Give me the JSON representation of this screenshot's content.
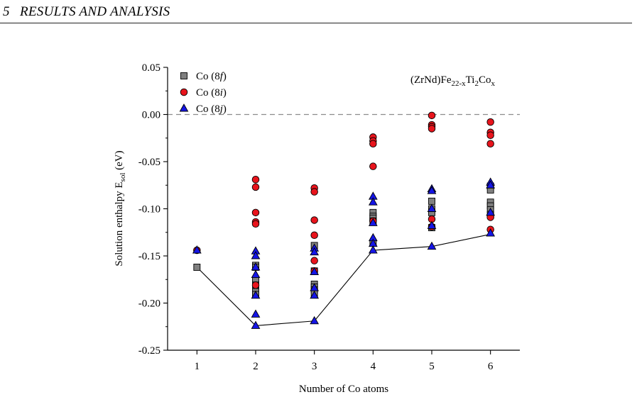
{
  "running_head": {
    "number": "5",
    "title": "RESULTS AND ANALYSIS"
  },
  "chart_data": {
    "type": "scatter",
    "formula": {
      "base": "(ZrNd)Fe",
      "sub1": "22-x",
      "mid": "Ti",
      "sub2": "2",
      "el": "Co",
      "sub3": "x"
    },
    "xlabel": "Number of Co atoms",
    "ylabel": {
      "main": "Solution enthalpy E",
      "sub": "sol",
      "unit": " (eV)"
    },
    "xlim": [
      0.5,
      6.5
    ],
    "ylim": [
      -0.25,
      0.05
    ],
    "x_ticks": [
      1,
      2,
      3,
      4,
      5,
      6
    ],
    "x_tick_labels": [
      "1",
      "2",
      "3",
      "4",
      "5",
      "6"
    ],
    "y_ticks": [
      0.05,
      0.0,
      -0.05,
      -0.1,
      -0.15,
      -0.2,
      -0.25
    ],
    "y_tick_labels": [
      "0.05",
      "0.00",
      "-0.05",
      "-0.10",
      "-0.15",
      "-0.20",
      "-0.25"
    ],
    "legend_position": "top-left",
    "reference_line": {
      "y": 0.0,
      "style": "dashed",
      "color": "#8c8c8c"
    },
    "series": [
      {
        "name": "Co (8f)",
        "label": {
          "pre": "Co (8",
          "it": "f",
          "post": ")"
        },
        "marker": "square",
        "color": "#808080",
        "points": [
          [
            1,
            -0.162
          ],
          [
            2,
            -0.16
          ],
          [
            2,
            -0.162
          ],
          [
            2,
            -0.175
          ],
          [
            2,
            -0.181
          ],
          [
            2,
            -0.188
          ],
          [
            2,
            -0.191
          ],
          [
            3,
            -0.139
          ],
          [
            3,
            -0.166
          ],
          [
            3,
            -0.18
          ],
          [
            3,
            -0.183
          ],
          [
            3,
            -0.186
          ],
          [
            3,
            -0.19
          ],
          [
            4,
            -0.104
          ],
          [
            4,
            -0.108
          ],
          [
            4,
            -0.11
          ],
          [
            4,
            -0.113
          ],
          [
            4,
            -0.136
          ],
          [
            5,
            -0.092
          ],
          [
            5,
            -0.1
          ],
          [
            5,
            -0.104
          ],
          [
            5,
            -0.12
          ],
          [
            6,
            -0.076
          ],
          [
            6,
            -0.08
          ],
          [
            6,
            -0.093
          ],
          [
            6,
            -0.097
          ],
          [
            6,
            -0.101
          ],
          [
            6,
            -0.106
          ]
        ]
      },
      {
        "name": "Co (8i)",
        "label": {
          "pre": "Co (8",
          "it": "i",
          "post": ")"
        },
        "marker": "circle",
        "color": "#e8141c",
        "points": [
          [
            1,
            -0.144
          ],
          [
            2,
            -0.069
          ],
          [
            2,
            -0.077
          ],
          [
            2,
            -0.104
          ],
          [
            2,
            -0.114
          ],
          [
            2,
            -0.116
          ],
          [
            2,
            -0.181
          ],
          [
            3,
            -0.078
          ],
          [
            3,
            -0.082
          ],
          [
            3,
            -0.112
          ],
          [
            3,
            -0.128
          ],
          [
            3,
            -0.155
          ],
          [
            3,
            -0.166
          ],
          [
            4,
            -0.024
          ],
          [
            4,
            -0.028
          ],
          [
            4,
            -0.031
          ],
          [
            4,
            -0.055
          ],
          [
            4,
            -0.113
          ],
          [
            5,
            -0.001
          ],
          [
            5,
            -0.011
          ],
          [
            5,
            -0.013
          ],
          [
            5,
            -0.015
          ],
          [
            5,
            -0.111
          ],
          [
            5,
            -0.119
          ],
          [
            6,
            -0.008
          ],
          [
            6,
            -0.019
          ],
          [
            6,
            -0.022
          ],
          [
            6,
            -0.031
          ],
          [
            6,
            -0.109
          ],
          [
            6,
            -0.122
          ]
        ]
      },
      {
        "name": "Co (8j)",
        "label": {
          "pre": "Co (8",
          "it": "j",
          "post": ")"
        },
        "marker": "triangle",
        "color": "#1515e6",
        "points": [
          [
            1,
            -0.144
          ],
          [
            2,
            -0.145
          ],
          [
            2,
            -0.15
          ],
          [
            2,
            -0.162
          ],
          [
            2,
            -0.17
          ],
          [
            2,
            -0.192
          ],
          [
            2,
            -0.212
          ],
          [
            2,
            -0.224
          ],
          [
            3,
            -0.142
          ],
          [
            3,
            -0.146
          ],
          [
            3,
            -0.167
          ],
          [
            3,
            -0.184
          ],
          [
            3,
            -0.192
          ],
          [
            3,
            -0.219
          ],
          [
            4,
            -0.087
          ],
          [
            4,
            -0.093
          ],
          [
            4,
            -0.115
          ],
          [
            4,
            -0.131
          ],
          [
            4,
            -0.137
          ],
          [
            4,
            -0.144
          ],
          [
            5,
            -0.079
          ],
          [
            5,
            -0.081
          ],
          [
            5,
            -0.1
          ],
          [
            5,
            -0.118
          ],
          [
            5,
            -0.14
          ],
          [
            6,
            -0.072
          ],
          [
            6,
            -0.075
          ],
          [
            6,
            -0.104
          ],
          [
            6,
            -0.126
          ]
        ]
      }
    ],
    "minimum_line": {
      "points": [
        [
          1,
          -0.162
        ],
        [
          2,
          -0.224
        ],
        [
          3,
          -0.219
        ],
        [
          4,
          -0.144
        ],
        [
          5,
          -0.14
        ],
        [
          6,
          -0.127
        ]
      ],
      "color": "#000000"
    }
  }
}
